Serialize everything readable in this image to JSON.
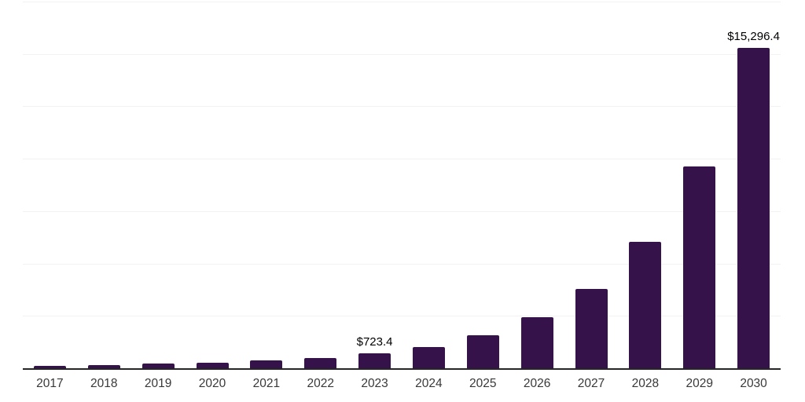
{
  "chart_data": {
    "type": "bar",
    "title": "",
    "xlabel": "",
    "ylabel": "",
    "categories": [
      "2017",
      "2018",
      "2019",
      "2020",
      "2021",
      "2022",
      "2023",
      "2024",
      "2025",
      "2026",
      "2027",
      "2028",
      "2029",
      "2030"
    ],
    "values": [
      130,
      168,
      210,
      280,
      390,
      505,
      723.4,
      1010,
      1560,
      2440,
      3800,
      6045,
      9620,
      15296.4
    ],
    "point_labels": [
      "",
      "",
      "",
      "",
      "",
      "",
      "$723.4",
      "",
      "",
      "",
      "",
      "",
      "",
      "$15,296.4"
    ],
    "labeled_points": {
      "2023": "$723.4",
      "2030": "$15,296.4"
    },
    "ylim": [
      0,
      17500
    ],
    "grid_step": 2500,
    "grid": true,
    "legend_position": "none",
    "y_axis_tick_labels_visible": false
  },
  "colors": {
    "bar": "#35124a",
    "axis": "#262626",
    "gridline": "#f2f2f2",
    "tick_label": "#383838",
    "value_label": "#000000",
    "background": "#ffffff"
  }
}
